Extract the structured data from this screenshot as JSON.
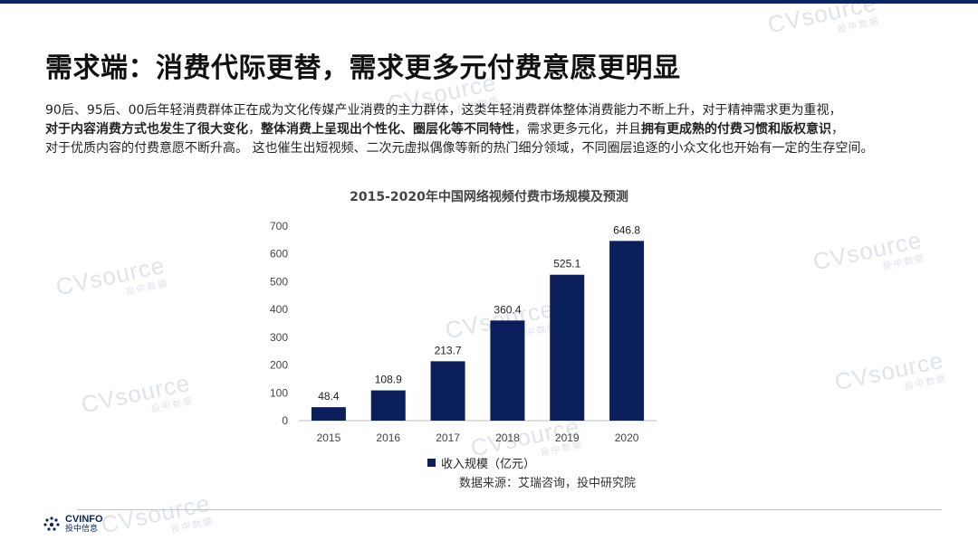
{
  "header": {
    "title": "需求端：消费代际更替，需求更多元付费意愿更明显"
  },
  "paragraph": {
    "line1": "90后、95后、00后年轻消费群体正在成为文化传媒产业消费的主力群体，这类年轻消费群体整体消费能力不断上升，对于精神需求更为重视，",
    "line2_bold_a": "对于内容消费方式也发生了很大变化",
    "line2_b": "，",
    "line2_bold_c": "整体消费上呈现出个性化、圈层化等不同特性",
    "line2_d": "，需求更多元化，并且",
    "line2_bold_e": "拥有更成熟的付费习惯和版权意识",
    "line2_f": "，",
    "line3": "对于优质内容的付费意愿不断升高。 这也催生出短视频、二次元虚拟偶像等新的热门细分领域，不同圈层追逐的小众文化也开始有一定的生存空间。"
  },
  "chart_data": {
    "type": "bar",
    "title": "2015-2020年中国网络视频付费市场规模及预测",
    "categories": [
      "2015",
      "2016",
      "2017",
      "2018",
      "2019",
      "2020"
    ],
    "series": [
      {
        "name": "收入规模（亿元）",
        "values": [
          48.4,
          108.9,
          213.7,
          360.4,
          525.1,
          646.8
        ]
      }
    ],
    "value_labels": [
      "48.4",
      "108.9",
      "213.7",
      "360.4",
      "525.1",
      "646.8"
    ],
    "yticks": [
      "0",
      "100",
      "200",
      "300",
      "400",
      "500",
      "600",
      "700"
    ],
    "ylim": [
      0,
      700
    ],
    "grid": false,
    "legend_position": "bottom",
    "bar_color": "#0b1f5c",
    "source": "数据来源：艾瑞咨询，投中研究院"
  },
  "footer": {
    "logo_main": "CVINFO",
    "logo_sub": "投中信息"
  },
  "watermarks": [
    "CVsource",
    "投中数据"
  ],
  "colors": {
    "accent": "#0b2463",
    "bar": "#0b1f5c"
  }
}
